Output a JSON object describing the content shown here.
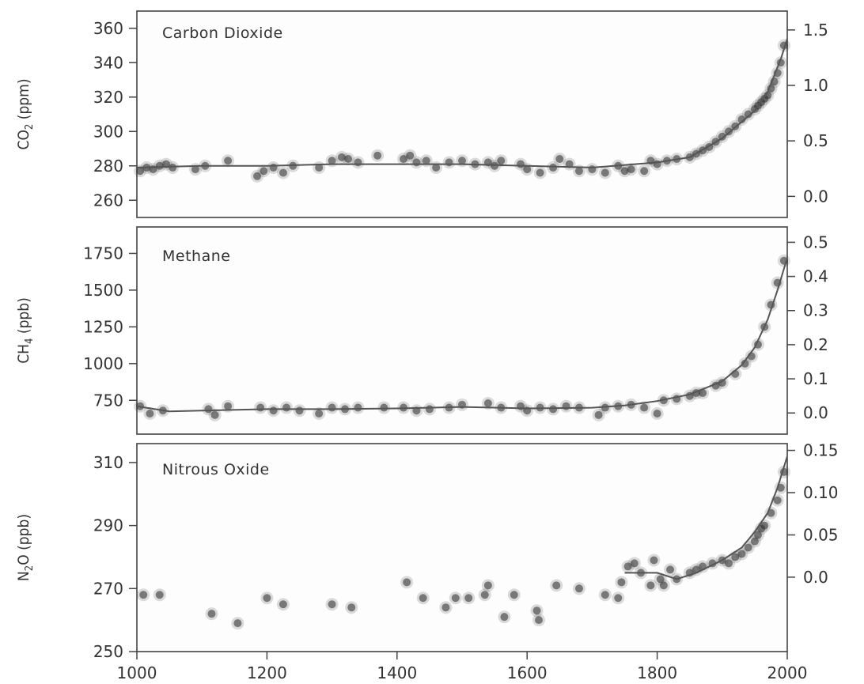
{
  "chart_data": [
    {
      "type": "scatter",
      "title": "Carbon Dioxide",
      "ylabel_main": "CO",
      "ylabel_sub": "2",
      "ylabel_unit": " (ppm)",
      "xlim": [
        1000,
        2000
      ],
      "ylim": [
        250,
        370
      ],
      "yticks": [
        260,
        280,
        300,
        320,
        340,
        360
      ],
      "y2lim": [
        -0.19,
        1.67
      ],
      "y2ticks": [
        0.0,
        0.5,
        1.0,
        1.5
      ],
      "y2tick_labels": [
        "0.0",
        "0.5",
        "1.0",
        "1.5"
      ],
      "series": [
        {
          "x": [
            1005,
            1015,
            1025,
            1035,
            1045,
            1055,
            1090,
            1105,
            1140,
            1185,
            1195,
            1210,
            1225,
            1240,
            1280,
            1300,
            1315,
            1325,
            1340,
            1370,
            1410,
            1420,
            1430,
            1445,
            1460,
            1480,
            1500,
            1520,
            1540,
            1550,
            1560,
            1590,
            1600,
            1620,
            1640,
            1650,
            1665,
            1680,
            1700,
            1720,
            1740,
            1750,
            1760,
            1780,
            1790,
            1800,
            1815,
            1830,
            1850,
            1860,
            1870,
            1880,
            1890,
            1900,
            1910,
            1920,
            1930,
            1940,
            1950,
            1955,
            1960,
            1965,
            1970,
            1975,
            1980,
            1985,
            1990,
            1995
          ],
          "y": [
            277,
            279,
            278,
            280,
            281,
            279,
            278,
            280,
            283,
            274,
            277,
            279,
            276,
            280,
            279,
            283,
            285,
            284,
            282,
            286,
            284,
            286,
            282,
            283,
            279,
            282,
            283,
            281,
            282,
            280,
            283,
            281,
            278,
            276,
            279,
            284,
            281,
            277,
            278,
            276,
            280,
            277,
            278,
            277,
            283,
            281,
            283,
            284,
            285,
            287,
            289,
            291,
            294,
            297,
            300,
            303,
            307,
            310,
            313,
            315,
            317,
            319,
            321,
            325,
            329,
            334,
            340,
            350
          ]
        }
      ],
      "curve": {
        "x": [
          1000,
          1100,
          1200,
          1300,
          1400,
          1500,
          1600,
          1700,
          1800,
          1850,
          1900,
          1950,
          1970,
          1990,
          2000
        ],
        "y": [
          279,
          280,
          280,
          281,
          281,
          281,
          280,
          279,
          282,
          285,
          296,
          312,
          323,
          342,
          354
        ]
      }
    },
    {
      "type": "scatter",
      "title": "Methane",
      "ylabel_main": "CH",
      "ylabel_sub": "4",
      "ylabel_unit": " (ppb)",
      "xlim": [
        1000,
        2000
      ],
      "ylim": [
        520,
        1930
      ],
      "yticks": [
        750,
        1000,
        1250,
        1500,
        1750
      ],
      "y2lim": [
        -0.062,
        0.545
      ],
      "y2ticks": [
        0.0,
        0.1,
        0.2,
        0.3,
        0.4,
        0.5
      ],
      "y2tick_labels": [
        "0.0",
        "0.1",
        "0.2",
        "0.3",
        "0.4",
        "0.5"
      ],
      "series": [
        {
          "x": [
            1005,
            1020,
            1040,
            1110,
            1120,
            1140,
            1190,
            1210,
            1230,
            1250,
            1280,
            1300,
            1320,
            1340,
            1380,
            1410,
            1430,
            1450,
            1480,
            1500,
            1540,
            1560,
            1590,
            1600,
            1620,
            1640,
            1660,
            1680,
            1710,
            1720,
            1740,
            1760,
            1780,
            1800,
            1810,
            1830,
            1850,
            1860,
            1870,
            1890,
            1900,
            1920,
            1935,
            1945,
            1955,
            1965,
            1975,
            1985,
            1995
          ],
          "y": [
            710,
            660,
            680,
            690,
            650,
            710,
            700,
            680,
            700,
            680,
            660,
            700,
            690,
            700,
            700,
            700,
            680,
            690,
            700,
            720,
            730,
            700,
            710,
            680,
            700,
            690,
            710,
            700,
            650,
            700,
            710,
            720,
            700,
            660,
            750,
            760,
            780,
            800,
            800,
            850,
            870,
            930,
            1000,
            1050,
            1130,
            1250,
            1400,
            1550,
            1700
          ]
        }
      ],
      "curve": {
        "x": [
          1000,
          1050,
          1100,
          1200,
          1300,
          1400,
          1500,
          1600,
          1700,
          1750,
          1800,
          1850,
          1900,
          1930,
          1950,
          1970,
          1985,
          2000
        ],
        "y": [
          710,
          675,
          680,
          690,
          690,
          695,
          705,
          695,
          700,
          715,
          745,
          790,
          880,
          990,
          1110,
          1300,
          1500,
          1720
        ]
      }
    },
    {
      "type": "scatter",
      "title": "Nitrous Oxide",
      "ylabel_main": "N",
      "ylabel_sub": "2",
      "ylabel_unit": "O (ppb)",
      "xlim": [
        1000,
        2000
      ],
      "ylim": [
        250,
        316
      ],
      "yticks": [
        250,
        270,
        290,
        310
      ],
      "y2lim": [
        -0.088,
        0.158
      ],
      "y2ticks": [
        0.0,
        0.05,
        0.1,
        0.15
      ],
      "y2tick_labels": [
        "0.0",
        "0.05",
        "0.10",
        "0.15"
      ],
      "xticks": [
        1000,
        1200,
        1400,
        1600,
        1800,
        2000
      ],
      "series": [
        {
          "x": [
            1010,
            1035,
            1115,
            1155,
            1200,
            1225,
            1300,
            1330,
            1415,
            1440,
            1475,
            1490,
            1510,
            1535,
            1540,
            1565,
            1580,
            1615,
            1618,
            1645,
            1680,
            1720,
            1740,
            1745,
            1755,
            1765,
            1775,
            1790,
            1795,
            1805,
            1810,
            1820,
            1830,
            1850,
            1860,
            1870,
            1885,
            1900,
            1910,
            1920,
            1930,
            1940,
            1950,
            1955,
            1960,
            1965,
            1975,
            1985,
            1990,
            1995
          ],
          "y": [
            268,
            268,
            262,
            259,
            267,
            265,
            265,
            264,
            272,
            267,
            264,
            267,
            267,
            268,
            271,
            261,
            268,
            263,
            260,
            271,
            270,
            268,
            267,
            272,
            277,
            278,
            275,
            271,
            279,
            273,
            271,
            276,
            273,
            275,
            276,
            277,
            278,
            279,
            278,
            280,
            281,
            283,
            285,
            287,
            289,
            290,
            294,
            298,
            302,
            307
          ]
        }
      ],
      "curve": {
        "x": [
          1750,
          1800,
          1830,
          1860,
          1900,
          1930,
          1950,
          1970,
          1985,
          2000
        ],
        "y": [
          275,
          275,
          273,
          275,
          279,
          283,
          288,
          294,
          302,
          312
        ]
      }
    }
  ]
}
